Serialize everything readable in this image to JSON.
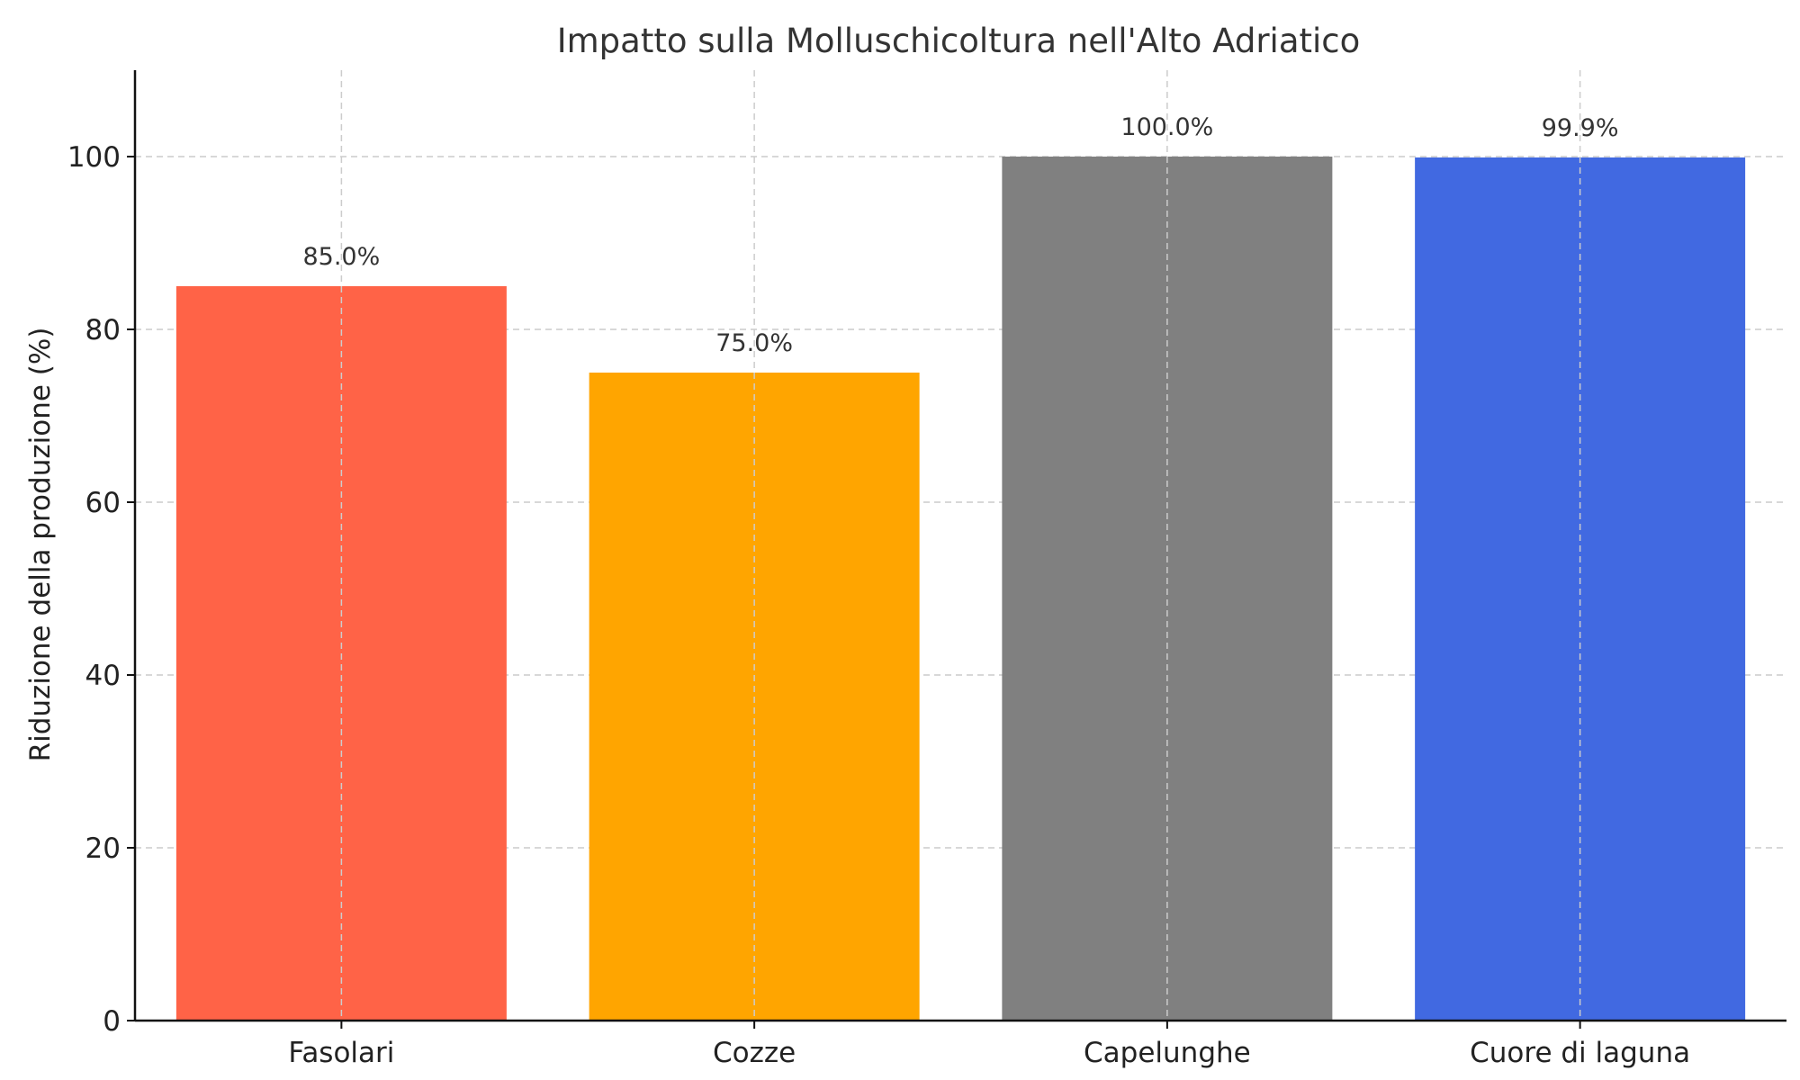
{
  "chart_data": {
    "type": "bar",
    "title": "Impatto sulla Molluschicoltura nell'Alto Adriatico",
    "xlabel": "",
    "ylabel": "Riduzione della produzione (%)",
    "categories": [
      "Fasolari",
      "Cozze",
      "Capelunghe",
      "Cuore di laguna"
    ],
    "values": [
      85.0,
      75.0,
      100.0,
      99.9
    ],
    "data_labels": [
      "85.0%",
      "75.0%",
      "100.0%",
      "99.9%"
    ],
    "colors": [
      "#ff6347",
      "#ffa500",
      "#808080",
      "#4169e1"
    ],
    "ylim": [
      0,
      110
    ],
    "yticks": [
      0,
      20,
      40,
      60,
      80,
      100
    ],
    "grid": true,
    "legend": false
  }
}
